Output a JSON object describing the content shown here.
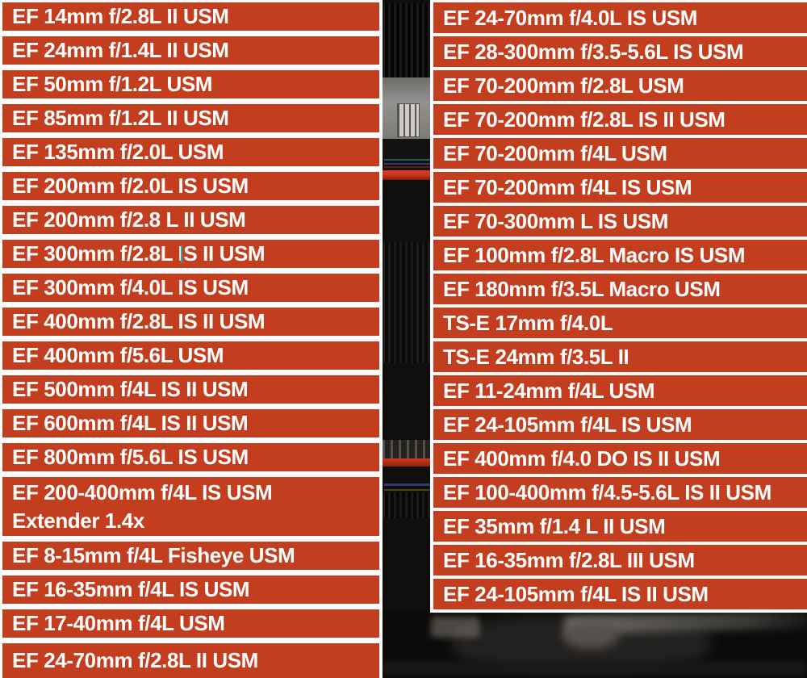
{
  "colors": {
    "bar_bg": "#c23e1e",
    "bar_text": "#ffffff",
    "divider": "#fdfcfa",
    "cursor": "#2fa39b",
    "lens_red_ring": "#c53420"
  },
  "left_column": {
    "items": [
      {
        "label": "EF 14mm f/2.8L II USM"
      },
      {
        "label": "EF 24mm f/1.4L II USM"
      },
      {
        "label": "EF 50mm f/1.2L USM"
      },
      {
        "label": "EF 85mm f/1.2L II USM"
      },
      {
        "label": "EF 135mm f/2.0L USM"
      },
      {
        "label": "EF 200mm f/2.0L IS USM"
      },
      {
        "label": "EF 200mm f/2.8 L II USM"
      },
      {
        "label": "EF 300mm f/2.8L IS II USM"
      },
      {
        "label": "EF 300mm f/4.0L IS USM"
      },
      {
        "label": "EF 400mm f/2.8L IS II USM"
      },
      {
        "label": "EF 400mm f/5.6L USM"
      },
      {
        "label": "EF 500mm f/4L IS II USM"
      },
      {
        "label": "EF 600mm f/4L IS II USM"
      },
      {
        "label": "EF 800mm f/5.6L IS USM"
      },
      {
        "label": "EF 200-400mm f/4L IS USM",
        "label_line2": "Extender 1.4x"
      },
      {
        "label": "EF 8-15mm f/4L Fisheye USM"
      },
      {
        "label": "EF 16-35mm f/4L IS USM"
      },
      {
        "label": "EF 17-40mm f/4L USM"
      },
      {
        "label": "EF 24-70mm f/2.8L II USM"
      }
    ]
  },
  "right_column": {
    "items": [
      {
        "label": "EF 24-70mm f/4.0L IS USM"
      },
      {
        "label": "EF 28-300mm f/3.5-5.6L IS USM"
      },
      {
        "label": "EF 70-200mm f/2.8L USM"
      },
      {
        "label": "EF 70-200mm f/2.8L IS II USM"
      },
      {
        "label": "EF 70-200mm f/4L USM"
      },
      {
        "label": "EF 70-200mm f/4L IS USM"
      },
      {
        "label": "EF 70-300mm L IS USM"
      },
      {
        "label": "EF 100mm f/2.8L Macro IS USM"
      },
      {
        "label": "EF 180mm f/3.5L Macro USM"
      },
      {
        "label": "TS-E 17mm f/4.0L"
      },
      {
        "label": "TS-E 24mm f/3.5L II"
      },
      {
        "label": "EF 11-24mm f/4L USM"
      },
      {
        "label": "EF 24-105mm f/4L IS USM"
      },
      {
        "label": "EF 400mm f/4.0 DO IS II USM"
      },
      {
        "label": "EF 100-400mm f/4.5-5.6L IS II USM"
      },
      {
        "label": "EF 35mm f/1.4 L II USM"
      },
      {
        "label": "EF 16-35mm f/2.8L III USM"
      },
      {
        "label": "EF 24-105mm f/4L IS II USM"
      }
    ]
  }
}
